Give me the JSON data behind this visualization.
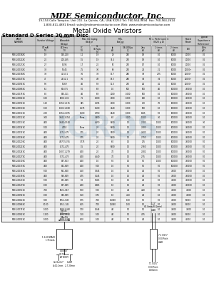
{
  "company": "MDE Semiconductor, Inc.",
  "address1": "19-194 Calle Tampico, Unit 215, La Quinta, CA., USA 92253 Tel: 760-564-9694  Fax: 760-564-2614",
  "address2": "1-800-811-4891 Email: sales@mdesemiconductor.com Web: www.mdesemiconductor.com",
  "product": "Metal Oxide Varistors",
  "series": "Standard D Series 20 mm Disc",
  "col_headers_line1": [
    "PART",
    "Varistor Voltage",
    "Maximum",
    "Max Clamping",
    "",
    "Max.",
    "",
    "Max. Peak Current",
    "",
    "Rated",
    "Typical"
  ],
  "col_headers_line2": [
    "NUMBER",
    "V(1mA)",
    "Allowable",
    "Voltage  (8/20 μ",
    "",
    "Energy",
    "",
    "(8/20 μ D)",
    "",
    "Power",
    "Capacitance"
  ],
  "col_sub_left": [
    "",
    "(V)",
    "Voltage",
    "ACVrms",
    "DC",
    "Vc",
    "Ip",
    "1/8/1000μs",
    "2ms",
    "1 times",
    "2 times",
    "",
    "(Reference)"
  ],
  "rows": [
    [
      "MDE-20D182K",
      "1.8",
      "130-220",
      "1.1",
      "1.8",
      "28",
      "250",
      "1/8",
      "1.0",
      "10000",
      "20000",
      "0.2",
      "100,000"
    ],
    [
      "MDE-20D222K",
      "2.2",
      "200-265",
      "1.5",
      "1.9",
      "34.4",
      "270",
      "1/8",
      "1.0",
      "10000",
      "20000",
      "0.2",
      "100,000"
    ],
    [
      "MDE-20D272K",
      "2.7",
      "54-95",
      "1.7",
      "2.2",
      "50",
      "270",
      "1/7",
      "1.0",
      "10000",
      "20000",
      "0.2",
      "64,500"
    ],
    [
      "MDE-20D332K",
      "3.3",
      "99-45",
      "2.5",
      "3.0",
      "90",
      "270",
      "2/4",
      "2.1",
      "10000",
      "20000+",
      "0.2",
      "260,000"
    ],
    [
      "MDE-20D392K",
      "3.9",
      "42-53.1",
      "3.0",
      "3.9",
      "17.7",
      "280",
      "3/8",
      "2.75",
      "10000",
      "20000+",
      "0.2",
      "1.1,4000"
    ],
    [
      "MDE-20D471K",
      "47",
      "44-52.1",
      "3.0",
      "4.9",
      "19.3",
      "280",
      "3/4",
      "3.4",
      "10000",
      "20000+",
      "0.2",
      "1.1,1500"
    ],
    [
      "MDE-20D561K",
      "5.6",
      "52-69",
      "4.0",
      "5.9",
      "11.0",
      "270",
      "4/1",
      "4.1",
      "10000",
      "20000+",
      "0.2",
      "1.2,1700"
    ],
    [
      "MDE-20D681K",
      "6.2",
      "61-67.5",
      "5.0",
      "6.8",
      "1.0",
      "500",
      "500",
      "4.0",
      "100000",
      "750000",
      "1.0",
      "5,1000"
    ],
    [
      "MDE-20D751K",
      "8.2",
      "540-111",
      "4.0",
      "6.8",
      "2000",
      "1,000",
      "500",
      "1.0",
      "100000",
      "750000",
      "1.0",
      "5,1500"
    ],
    [
      "MDE-20D821K",
      "1.00",
      "1000-1.04",
      "7.1",
      "1,000",
      "2000",
      "1,000",
      "880",
      "1.0",
      "100000",
      "750000",
      "1.0",
      "6,1000"
    ],
    [
      "MDE-20D911K",
      "1.10",
      "1,050-1,135",
      "885",
      "1,295",
      "2000",
      "1,000",
      "700",
      "7.0",
      "100000",
      "750000",
      "1.0",
      "6,1500"
    ],
    [
      "MDE-20D101K",
      "1.60",
      "1,503-1,188",
      "1,175",
      "1,500",
      "4040",
      "1,000",
      "850",
      "1.0",
      "100000",
      "750000",
      "1.0",
      "7,1500"
    ],
    [
      "MDE-20D111K",
      "2.00",
      "1,952-2,075",
      "1,500",
      "1,750",
      "2640",
      "1,000",
      "1545",
      "5.0",
      "100000",
      "750000",
      "1.0",
      "12,1000"
    ],
    [
      "MDE-20D121K",
      "3.00",
      "3,041-3,354",
      "Norm",
      "3,800",
      "6.0",
      "3,100",
      "1,500",
      "3.0",
      "100000",
      "750000",
      "1.0",
      "3,1000"
    ],
    [
      "MDE-20D131K",
      "4.00",
      "3,040-4,540",
      "",
      "4,550",
      "5600",
      "1.0",
      "2,100",
      "1,500",
      "100000",
      "750000",
      "3.0",
      "3,600"
    ],
    [
      "MDE-20D141K",
      "5.00",
      "4.752",
      "Norm",
      "2.0",
      "5600",
      "1.0",
      "2,400",
      "1,500",
      "100000",
      "750000",
      "5.0",
      "1,500"
    ],
    [
      "MDE-20D151K",
      "4.00",
      "467-2,475",
      "3.75",
      "2.0",
      "5400",
      "1.0",
      "2,600",
      "1,500",
      "100000",
      "750000",
      "5.0",
      "1,600"
    ],
    [
      "MDE-20D181K",
      "4.00",
      "467-2,475",
      "3.75",
      "2.0",
      "5600",
      "1.0",
      "2,750",
      "1,500",
      "100000",
      "750000",
      "5.0",
      "1,700"
    ],
    [
      "MDE-20D201K",
      "4.00",
      "4,977-5,755",
      "3,775",
      "2.0",
      "6.0",
      "1.0",
      "275",
      "1,500",
      "100000",
      "750000",
      "5.0",
      "1,800"
    ],
    [
      "MDE-20D221K",
      "4.00",
      "467-1,475",
      "1.5",
      "2.0",
      "5600",
      "1.0",
      "2,760",
      "1,500",
      "100000",
      "750000",
      "5.0",
      "1,900"
    ],
    [
      "MDE-20D241K",
      "4.00",
      "1,607-1,279",
      "4.00",
      "2.0",
      "7.0",
      "1.0",
      "2,802",
      "1,500",
      "100000",
      "750000",
      "5.0",
      "1,900"
    ],
    [
      "MDE-20D271K",
      "4.00",
      "367-1,473",
      "4.00",
      "4,540",
      "7.0",
      "1.0",
      "2.75",
      "1,500",
      "100000",
      "750000",
      "5.0",
      "1,900"
    ],
    [
      "MDE-20D301K",
      "4.00",
      "547-623",
      "4.00",
      "1.0",
      "5.0",
      "1.0",
      "5.0",
      "1,500",
      "100000",
      "750000",
      "5.0",
      "1.0"
    ],
    [
      "MDE-20D331K",
      "4.00",
      "542-649",
      "4.00",
      "5.00",
      "1.0",
      "5.0",
      "5.0",
      "5.0",
      "100000",
      "750000",
      "5.0",
      "1.0"
    ],
    [
      "MDE-20D361K",
      "5.00",
      "561-640",
      "4.50",
      "5,345",
      "1.0",
      "1.0",
      "4.0",
      "5.0",
      "75000",
      "750000",
      "1.0",
      "1000"
    ],
    [
      "MDE-20D391K",
      "4.00",
      "556-649",
      "4.75",
      "5,145",
      "1.0",
      "1.0",
      "4.0",
      "5.0",
      "75000",
      "750000",
      "1.0",
      "1000"
    ],
    [
      "MDE-20D431K",
      "5.00",
      "671-849",
      "5.0",
      "5,565",
      "1.0",
      "1.0",
      "4.0",
      "5.0",
      "75000",
      "750000",
      "1.0",
      "1000"
    ],
    [
      "MDE-20D471K",
      "6.00",
      "617-849",
      "4.00",
      "4,965",
      "1.0",
      "1.0",
      "4.0",
      "5.0",
      "75000",
      "750000",
      "1.0",
      "1000"
    ],
    [
      "MDE-20D511K",
      "7.00",
      "692-1,867",
      "5.00",
      "5.00",
      "1.0",
      "4.0",
      "4.40",
      "5.0",
      "75000",
      "75000",
      "1.0",
      "750"
    ],
    [
      "MDE-20D561K",
      "8.00",
      "810-989",
      "5.10",
      "8.75",
      "1.0",
      "4.50",
      "4.0",
      "1.0",
      "75000",
      "75000",
      "1.0",
      "1000"
    ],
    [
      "MDE-20D621K",
      "9.00",
      "855-1,049",
      "5.75",
      "7.00",
      "1,5060",
      "1.00",
      "5.0",
      "5.0",
      "75000",
      "65000",
      "1.0",
      "850"
    ],
    [
      "MDE-20D681K",
      "10.00",
      "945-1,145",
      "6.25",
      "7.00",
      "1,5060",
      "1.00",
      "5.0",
      "5.0",
      "75000",
      "65000",
      "1.0",
      "850"
    ],
    [
      "MDE-20D751K",
      "1,000",
      "1500-1,340",
      "7.00",
      "1,646",
      "4.0",
      "5.0",
      "5.0",
      "1.0",
      "75000",
      "75000",
      "1.0",
      "650"
    ],
    [
      "MDE-20D821K",
      "1,200",
      "1500-1,640",
      "7.50",
      "1.00",
      "4.0",
      "5.0",
      "4.75",
      "1.0",
      "75000",
      "65000",
      "1.0",
      "650"
    ],
    [
      "MDE-20D911K",
      "1,000",
      "1500-1,380",
      "8.00",
      "1.00",
      "4.0",
      "5.0",
      "4.0",
      "1.0",
      "75000",
      "45000",
      "1.0",
      "650"
    ]
  ],
  "bg_color": "#ffffff",
  "text_color": "#000000",
  "header_bg": "#cccccc",
  "watermark_text": "ICROS",
  "watermark_color": "#a8bfd0"
}
